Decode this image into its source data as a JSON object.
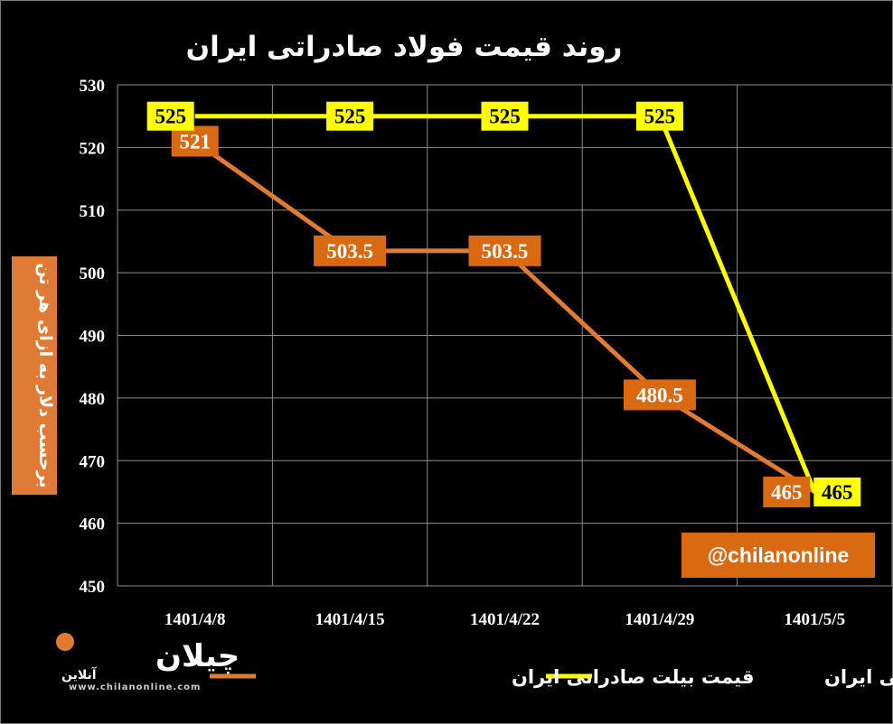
{
  "chart_data": {
    "type": "line",
    "title": "روند قیمت فولاد صادراتی ایران",
    "ylabel": "برحسب دلار به ازای هر تن",
    "categories": [
      "1401/4/8",
      "1401/4/15",
      "1401/4/22",
      "1401/4/29",
      "1401/5/5"
    ],
    "ylim": [
      450,
      530
    ],
    "yticks": [
      450,
      460,
      470,
      480,
      490,
      500,
      510,
      520,
      530
    ],
    "grid": true,
    "legend_position": "bottom",
    "series": [
      {
        "name": "قیمت اسلب صادراتی ایران",
        "color": "#ffff00",
        "values": [
          525,
          525,
          525,
          525,
          465
        ],
        "labels": [
          "525",
          "525",
          "525",
          "525",
          "465"
        ]
      },
      {
        "name": "قیمت بیلت صادراتی ایران",
        "color": "#e07b35",
        "values": [
          521,
          503.5,
          503.5,
          480.5,
          465
        ],
        "labels": [
          "521",
          "503.5",
          "503.5",
          "480.5",
          "465"
        ]
      }
    ]
  },
  "watermark": {
    "handle": "@chilanonline",
    "logo_text": "چیلان",
    "logo_sub": "آنلاین",
    "site": "www.chilanonline.com"
  },
  "colors": {
    "background": "#000000",
    "grid": "#8c8c8c",
    "billet": "#e07b35",
    "billet_label_bg": "#d96a12",
    "slab": "#ffff00"
  }
}
